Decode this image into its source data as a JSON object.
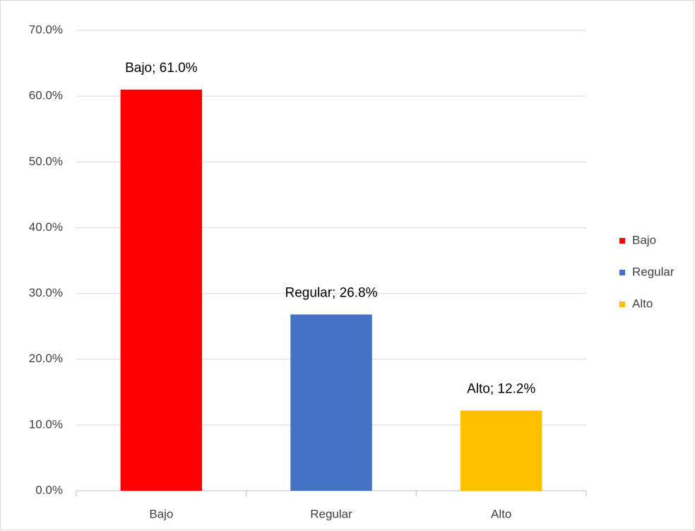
{
  "chart_data": {
    "type": "bar",
    "categories": [
      "Bajo",
      "Regular",
      "Alto"
    ],
    "series": [
      {
        "name": "Bajo",
        "color": "#ff0000",
        "values": [
          61.0,
          null,
          null
        ],
        "value_labels": [
          "Bajo; 61.0%",
          null,
          null
        ]
      },
      {
        "name": "Regular",
        "color": "#4472c4",
        "values": [
          null,
          26.8,
          null
        ],
        "value_labels": [
          null,
          "Regular; 26.8%",
          null
        ]
      },
      {
        "name": "Alto",
        "color": "#ffc000",
        "values": [
          null,
          null,
          12.2
        ],
        "value_labels": [
          null,
          null,
          "Alto; 12.2%"
        ]
      }
    ],
    "ylim": [
      0,
      70
    ],
    "yticks": [
      {
        "value": 0,
        "label": "0.0%"
      },
      {
        "value": 10,
        "label": "10.0%"
      },
      {
        "value": 20,
        "label": "20.0%"
      },
      {
        "value": 30,
        "label": "30.0%"
      },
      {
        "value": 40,
        "label": "40.0%"
      },
      {
        "value": 50,
        "label": "50.0%"
      },
      {
        "value": 60,
        "label": "60.0%"
      },
      {
        "value": 70,
        "label": "70.0%"
      }
    ],
    "grid": true,
    "legend": "right"
  }
}
